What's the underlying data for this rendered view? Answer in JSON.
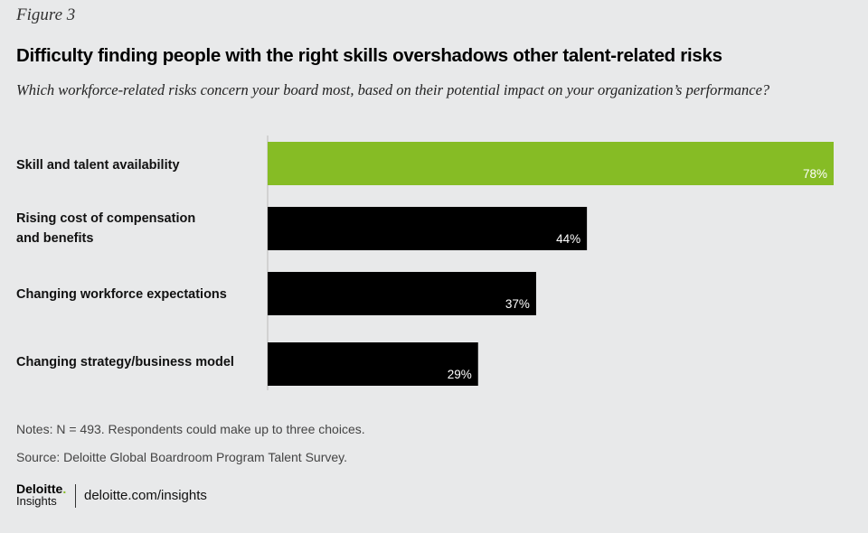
{
  "figure_label": "Figure 3",
  "chart_data": {
    "type": "bar",
    "orientation": "horizontal",
    "title": "Difficulty finding people with the right skills overshadows other talent-related risks",
    "subtitle": "Which workforce-related risks concern your board most, based on their potential impact on your organization’s performance?",
    "categories": [
      [
        "Skill and talent availability"
      ],
      [
        "Rising cost of compensation",
        "and benefits"
      ],
      [
        "Changing workforce expectations"
      ],
      [
        "Changing strategy/business model"
      ]
    ],
    "values": [
      78,
      44,
      37,
      29
    ],
    "value_labels": [
      "78%",
      "44%",
      "37%",
      "29%"
    ],
    "bar_colors": [
      "#86bc25",
      "#000000",
      "#000000",
      "#000000"
    ],
    "xlim": [
      0,
      78
    ],
    "unit": "%"
  },
  "notes": "Notes: N = 493. Respondents could make up to three choices.",
  "source": "Source: Deloitte Global Boardroom Program Talent Survey.",
  "brand": {
    "name": "Deloitte",
    "name_dot": ".",
    "sub": "Insights",
    "url": "deloitte.com/insights"
  }
}
